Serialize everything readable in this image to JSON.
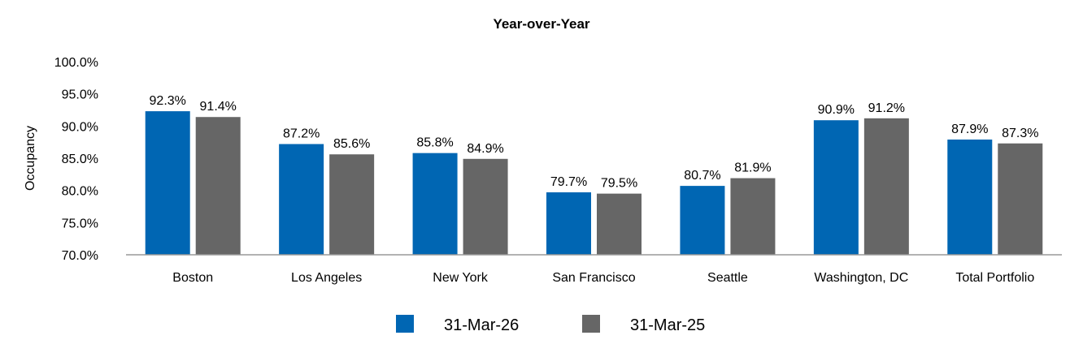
{
  "chart_data": {
    "type": "bar",
    "title": "Year-over-Year",
    "xlabel": "",
    "ylabel": "Occupancy",
    "ylim": [
      70,
      100
    ],
    "yticks": [
      "70.0%",
      "75.0%",
      "80.0%",
      "85.0%",
      "90.0%",
      "95.0%",
      "100.0%"
    ],
    "ytick_values": [
      70,
      75,
      80,
      85,
      90,
      95,
      100
    ],
    "categories": [
      "Boston",
      "Los Angeles",
      "New York",
      "San Francisco",
      "Seattle",
      "Washington, DC",
      "Total Portfolio"
    ],
    "series": [
      {
        "name": "31-Mar-26",
        "color": "#0066B3",
        "values": [
          92.3,
          87.2,
          85.8,
          79.7,
          80.7,
          90.9,
          87.9
        ],
        "labels": [
          "92.3%",
          "87.2%",
          "85.8%",
          "79.7%",
          "80.7%",
          "90.9%",
          "87.9%"
        ]
      },
      {
        "name": "31-Mar-25",
        "color": "#666666",
        "values": [
          91.4,
          85.6,
          84.9,
          79.5,
          81.9,
          91.2,
          87.3
        ],
        "labels": [
          "91.4%",
          "85.6%",
          "84.9%",
          "79.5%",
          "81.9%",
          "91.2%",
          "87.3%"
        ]
      }
    ],
    "grid": false,
    "legend_position": "bottom"
  }
}
